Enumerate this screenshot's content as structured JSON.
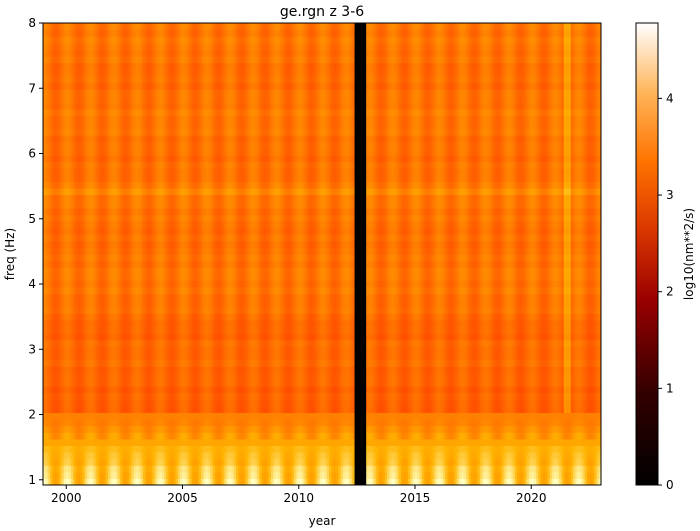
{
  "chart_data": {
    "type": "heatmap",
    "title": "ge.rgn z 3-6",
    "xlabel": "year",
    "ylabel": "freq (Hz)",
    "xlim": [
      1999.0,
      2023.0
    ],
    "ylim": [
      0.92,
      8.0
    ],
    "x_ticks": [
      2000,
      2005,
      2010,
      2015,
      2020
    ],
    "x_tick_labels": [
      "2000",
      "2005",
      "2010",
      "2015",
      "2020"
    ],
    "y_ticks": [
      1,
      2,
      3,
      4,
      5,
      6,
      7,
      8
    ],
    "y_tick_labels": [
      "1",
      "2",
      "3",
      "4",
      "5",
      "6",
      "7",
      "8"
    ],
    "colorbar": {
      "label": "log10(nm**2/s)",
      "colormap": "gist_heat",
      "range": [
        0,
        4.78
      ],
      "ticks": [
        0,
        1,
        2,
        3,
        4
      ],
      "tick_labels": [
        "0",
        "1",
        "2",
        "3",
        "4"
      ]
    },
    "data_gap": {
      "start": 2012.45,
      "end": 2012.85
    },
    "seasonal_period_years": 1.0,
    "bands": [
      {
        "freq_range": [
          0.92,
          1.6
        ],
        "log10_value_range": [
          3.7,
          4.7
        ]
      },
      {
        "freq_range": [
          1.6,
          2.0
        ],
        "log10_value_range": [
          3.3,
          3.8
        ]
      },
      {
        "freq_range": [
          2.0,
          3.4
        ],
        "log10_value_range": [
          2.95,
          3.25
        ]
      },
      {
        "freq_range": [
          3.4,
          8.0
        ],
        "log10_value_range": [
          3.05,
          3.4
        ]
      }
    ],
    "persistent_line_freq": 5.42,
    "grid": false
  }
}
